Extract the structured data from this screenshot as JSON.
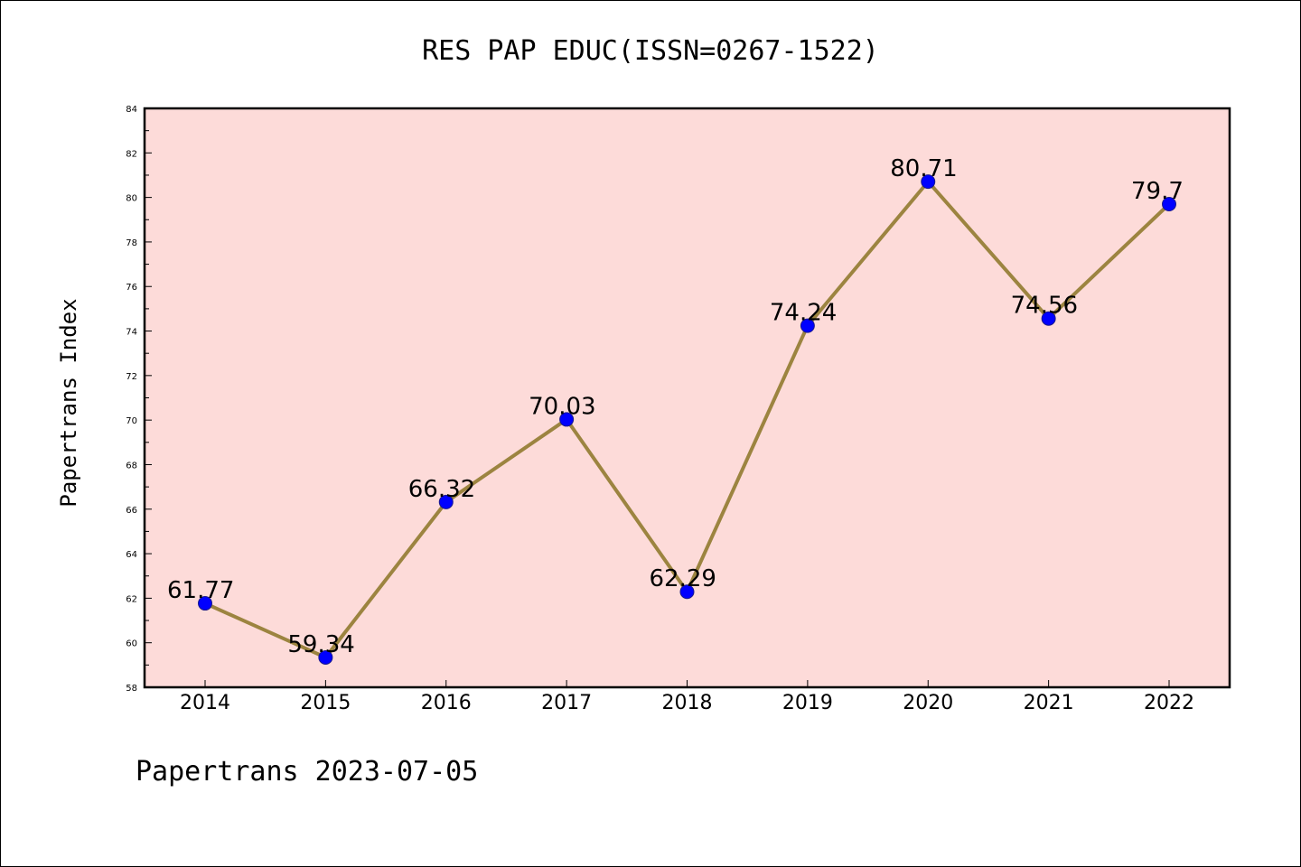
{
  "chart_data": {
    "type": "line",
    "title": "RES PAP EDUC(ISSN=0267-1522)",
    "ylabel": "Papertrans Index",
    "xlabel": "",
    "footer": "Papertrans 2023-07-05",
    "categories": [
      "2014",
      "2015",
      "2016",
      "2017",
      "2018",
      "2019",
      "2020",
      "2021",
      "2022"
    ],
    "values": [
      61.77,
      59.34,
      66.32,
      70.03,
      62.29,
      74.24,
      80.71,
      74.56,
      79.7
    ],
    "data_labels": [
      "61.77",
      "59.34",
      "66.32",
      "70.03",
      "62.29",
      "74.24",
      "80.71",
      "74.56",
      "79.7"
    ],
    "ylim": [
      58,
      84
    ],
    "yticks": [
      "58",
      "60",
      "62",
      "64",
      "66",
      "68",
      "70",
      "72",
      "74",
      "76",
      "78",
      "80",
      "82",
      "84"
    ],
    "grid": false,
    "colors": {
      "plot_background": "#fddbd9",
      "line": "#9c8440",
      "marker": "#0000ff",
      "marker_edge": "#1a1a8c"
    }
  }
}
